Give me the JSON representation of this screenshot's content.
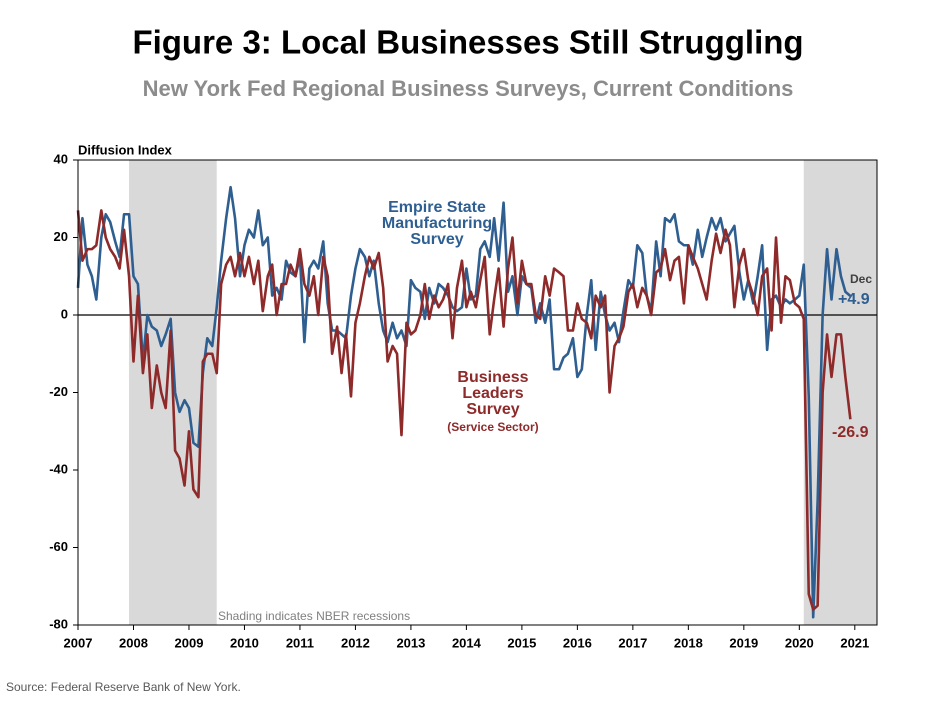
{
  "chart_data": {
    "type": "line",
    "title": "Figure 3: Local Businesses Still Struggling",
    "subtitle": "New York Fed Regional Business Surveys, Current Conditions",
    "y_label": "Diffusion Index",
    "source": "Source: Federal Reserve Bank of New York.",
    "shading_note": "Shading indicates NBER recessions",
    "recessions": [
      [
        2007.92,
        2009.5
      ],
      [
        2020.08,
        2021.4
      ]
    ],
    "recession_color": "#d9d9d9",
    "xlim": [
      2007,
      2021.4
    ],
    "xticks": [
      2007,
      2008,
      2009,
      2010,
      2011,
      2012,
      2013,
      2014,
      2015,
      2016,
      2017,
      2018,
      2019,
      2020,
      2021
    ],
    "ylim": [
      -80,
      40
    ],
    "yticks": [
      -80,
      -60,
      -40,
      -20,
      0,
      20,
      40
    ],
    "x": [
      2007.0,
      2007.08,
      2007.17,
      2007.25,
      2007.33,
      2007.42,
      2007.5,
      2007.58,
      2007.67,
      2007.75,
      2007.83,
      2007.92,
      2008.0,
      2008.08,
      2008.17,
      2008.25,
      2008.33,
      2008.42,
      2008.5,
      2008.58,
      2008.67,
      2008.75,
      2008.83,
      2008.92,
      2009.0,
      2009.08,
      2009.17,
      2009.25,
      2009.33,
      2009.42,
      2009.5,
      2009.58,
      2009.67,
      2009.75,
      2009.83,
      2009.92,
      2010.0,
      2010.08,
      2010.17,
      2010.25,
      2010.33,
      2010.42,
      2010.5,
      2010.58,
      2010.67,
      2010.75,
      2010.83,
      2010.92,
      2011.0,
      2011.08,
      2011.17,
      2011.25,
      2011.33,
      2011.42,
      2011.5,
      2011.58,
      2011.67,
      2011.75,
      2011.83,
      2011.92,
      2012.0,
      2012.08,
      2012.17,
      2012.25,
      2012.33,
      2012.42,
      2012.5,
      2012.58,
      2012.67,
      2012.75,
      2012.83,
      2012.92,
      2013.0,
      2013.08,
      2013.17,
      2013.25,
      2013.33,
      2013.42,
      2013.5,
      2013.58,
      2013.67,
      2013.75,
      2013.83,
      2013.92,
      2014.0,
      2014.08,
      2014.17,
      2014.25,
      2014.33,
      2014.42,
      2014.5,
      2014.58,
      2014.67,
      2014.75,
      2014.83,
      2014.92,
      2015.0,
      2015.08,
      2015.17,
      2015.25,
      2015.33,
      2015.42,
      2015.5,
      2015.58,
      2015.67,
      2015.75,
      2015.83,
      2015.92,
      2016.0,
      2016.08,
      2016.17,
      2016.25,
      2016.33,
      2016.42,
      2016.5,
      2016.58,
      2016.67,
      2016.75,
      2016.83,
      2016.92,
      2017.0,
      2017.08,
      2017.17,
      2017.25,
      2017.33,
      2017.42,
      2017.5,
      2017.58,
      2017.67,
      2017.75,
      2017.83,
      2017.92,
      2018.0,
      2018.08,
      2018.17,
      2018.25,
      2018.33,
      2018.42,
      2018.5,
      2018.58,
      2018.67,
      2018.75,
      2018.83,
      2018.92,
      2019.0,
      2019.08,
      2019.17,
      2019.25,
      2019.33,
      2019.42,
      2019.5,
      2019.58,
      2019.67,
      2019.75,
      2019.83,
      2019.92,
      2020.0,
      2020.08,
      2020.17,
      2020.25,
      2020.33,
      2020.42,
      2020.5,
      2020.58,
      2020.67,
      2020.75,
      2020.83,
      2020.92
    ],
    "series": [
      {
        "name": "Empire State Manufacturing Survey",
        "color": "#2f5f91",
        "values": [
          7,
          25,
          13,
          10,
          4,
          20,
          26,
          24,
          19,
          15,
          26,
          26,
          10,
          8,
          -12,
          0,
          -3,
          -4,
          -8,
          -5,
          -1,
          -20,
          -25,
          -22,
          -24,
          -33,
          -34,
          -15,
          -6,
          -8,
          2,
          14,
          25,
          33,
          25,
          10,
          18,
          22,
          20,
          27,
          18,
          20,
          5,
          7,
          4,
          14,
          11,
          10,
          15,
          -7,
          12,
          14,
          12,
          19,
          3,
          -4,
          -4,
          -5,
          -6,
          5,
          12,
          17,
          15,
          10,
          14,
          3,
          -4,
          -7,
          -2,
          -6,
          -4,
          -8,
          9,
          7,
          6,
          -1,
          7,
          3,
          8,
          7,
          5,
          2,
          1,
          2,
          12,
          4,
          5,
          17,
          19,
          15,
          25,
          14,
          29,
          6,
          10,
          0,
          10,
          8,
          7,
          -2,
          3,
          -2,
          4,
          -14,
          -14,
          -11,
          -10,
          -6,
          -16,
          -14,
          0,
          9,
          -9,
          6,
          0,
          -4,
          -2,
          -7,
          1,
          9,
          7,
          18,
          16,
          5,
          1,
          19,
          10,
          25,
          24,
          26,
          19,
          18,
          18,
          13,
          22,
          15,
          20,
          25,
          22,
          25,
          19,
          21,
          23,
          11,
          4,
          9,
          3,
          10,
          18,
          -9,
          4,
          5,
          2,
          4,
          3,
          4,
          5,
          13,
          -21,
          -78,
          -48,
          0,
          17,
          4,
          17,
          10,
          6,
          4.9
        ]
      },
      {
        "name": "Business Leaders Survey (Service Sector)",
        "color": "#8e2a2a",
        "values": [
          27,
          14,
          17,
          17,
          18,
          27,
          20,
          17,
          15,
          12,
          22,
          10,
          -12,
          5,
          -15,
          -5,
          -24,
          -13,
          -20,
          -24,
          -4,
          -35,
          -37,
          -44,
          -30,
          -45,
          -47,
          -12,
          -10,
          -10,
          -15,
          8,
          13,
          15,
          10,
          16,
          10,
          15,
          8,
          14,
          1,
          10,
          13,
          0,
          8,
          8,
          13,
          10,
          17,
          8,
          5,
          10,
          0,
          15,
          10,
          -10,
          -3,
          -15,
          -5,
          -21,
          -2,
          3,
          10,
          15,
          12,
          16,
          7,
          -12,
          -8,
          -10,
          -31,
          -2,
          -5,
          -4,
          0,
          8,
          -1,
          5,
          2,
          4,
          8,
          -6,
          7,
          14,
          2,
          6,
          2,
          9,
          15,
          -5,
          4,
          12,
          -3,
          12,
          20,
          3,
          14,
          8,
          8,
          0,
          -1,
          10,
          5,
          12,
          11,
          10,
          -4,
          -4,
          3,
          -1,
          -2,
          -6,
          5,
          2,
          5,
          -20,
          -8,
          -6,
          -3,
          6,
          8,
          2,
          7,
          5,
          0,
          11,
          12,
          17,
          9,
          14,
          15,
          3,
          18,
          15,
          12,
          8,
          4,
          14,
          21,
          16,
          22,
          18,
          2,
          13,
          17,
          9,
          5,
          0,
          10,
          12,
          -4,
          20,
          -2,
          10,
          9,
          3,
          2,
          -1,
          -72,
          -76,
          -75,
          -20,
          -5,
          -16,
          -5,
          -5,
          -16,
          -26.9
        ]
      }
    ],
    "annotations": [
      {
        "text": "Empire State",
        "color": "#2f5f91"
      },
      {
        "text": "Manufacturing",
        "color": "#2f5f91"
      },
      {
        "text": "Survey",
        "color": "#2f5f91"
      },
      {
        "text": "Business",
        "color": "#8e2a2a"
      },
      {
        "text": "Leaders",
        "color": "#8e2a2a"
      },
      {
        "text": "Survey",
        "color": "#8e2a2a"
      },
      {
        "text": "(Service Sector)",
        "color": "#8e2a2a"
      },
      {
        "text": "Dec",
        "color": "#404040"
      },
      {
        "text": "+4.9",
        "color": "#2f5f91"
      },
      {
        "text": "-26.9",
        "color": "#8e2a2a"
      }
    ]
  }
}
